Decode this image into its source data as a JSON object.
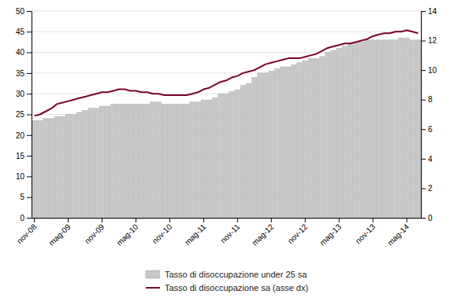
{
  "chart_data": {
    "type": "bar",
    "categories": [
      "nov-08",
      null,
      null,
      null,
      null,
      null,
      "mag-09",
      null,
      null,
      null,
      null,
      null,
      "nov-09",
      null,
      null,
      null,
      null,
      null,
      "mag-10",
      null,
      null,
      null,
      null,
      null,
      "nov-10",
      null,
      null,
      null,
      null,
      null,
      "mag-11",
      null,
      null,
      null,
      null,
      null,
      "nov-11",
      null,
      null,
      null,
      null,
      null,
      "mag-12",
      null,
      null,
      null,
      null,
      null,
      "nov-12",
      null,
      null,
      null,
      null,
      null,
      "mag-13",
      null,
      null,
      null,
      null,
      null,
      "nov-13",
      null,
      null,
      null,
      null,
      null,
      "mag-14",
      null,
      null
    ],
    "series": [
      {
        "name": "Tasso di disoccupazione under 25 sa",
        "type": "bar",
        "color": "#c8c8c8",
        "values": [
          23.5,
          23.5,
          24.0,
          24.0,
          24.5,
          24.5,
          25.0,
          25.0,
          25.5,
          26.0,
          26.5,
          26.5,
          27.0,
          27.0,
          27.5,
          27.5,
          27.5,
          27.5,
          27.5,
          27.5,
          27.5,
          28.0,
          28.0,
          27.5,
          27.5,
          27.5,
          27.5,
          27.5,
          28.0,
          28.0,
          28.5,
          28.5,
          29.0,
          30.0,
          30.0,
          30.5,
          31.0,
          32.0,
          32.5,
          34.0,
          35.0,
          35.0,
          35.5,
          36.0,
          36.5,
          36.5,
          37.0,
          37.5,
          38.0,
          38.5,
          38.5,
          39.0,
          40.0,
          40.5,
          41.0,
          41.5,
          42.0,
          42.5,
          42.5,
          43.0,
          43.0,
          43.0,
          43.0,
          43.0,
          43.0,
          43.5,
          43.5,
          43.0,
          43.0
        ]
      },
      {
        "name": "Tasso di disoccupazione sa (asse dx)",
        "type": "line",
        "color": "#7b0032",
        "axis": "y2",
        "values": [
          6.9,
          7.0,
          7.2,
          7.4,
          7.7,
          7.8,
          7.9,
          8.0,
          8.1,
          8.2,
          8.3,
          8.4,
          8.5,
          8.5,
          8.6,
          8.7,
          8.7,
          8.6,
          8.6,
          8.5,
          8.5,
          8.4,
          8.4,
          8.3,
          8.3,
          8.3,
          8.3,
          8.3,
          8.4,
          8.5,
          8.7,
          8.8,
          9.0,
          9.2,
          9.3,
          9.5,
          9.6,
          9.8,
          9.9,
          10.0,
          10.2,
          10.4,
          10.5,
          10.6,
          10.7,
          10.8,
          10.8,
          10.8,
          10.9,
          11.0,
          11.1,
          11.3,
          11.5,
          11.6,
          11.7,
          11.8,
          11.8,
          11.9,
          12.0,
          12.1,
          12.3,
          12.4,
          12.5,
          12.5,
          12.6,
          12.6,
          12.7,
          12.6,
          12.5
        ]
      }
    ],
    "ylim": [
      0,
      50
    ],
    "yticks": [
      0,
      5,
      10,
      15,
      20,
      25,
      30,
      35,
      40,
      45,
      50
    ],
    "y2lim": [
      0,
      14
    ],
    "y2ticks": [
      0,
      2,
      4,
      6,
      8,
      10,
      12,
      14
    ],
    "grid": true,
    "legend": "bottom"
  }
}
